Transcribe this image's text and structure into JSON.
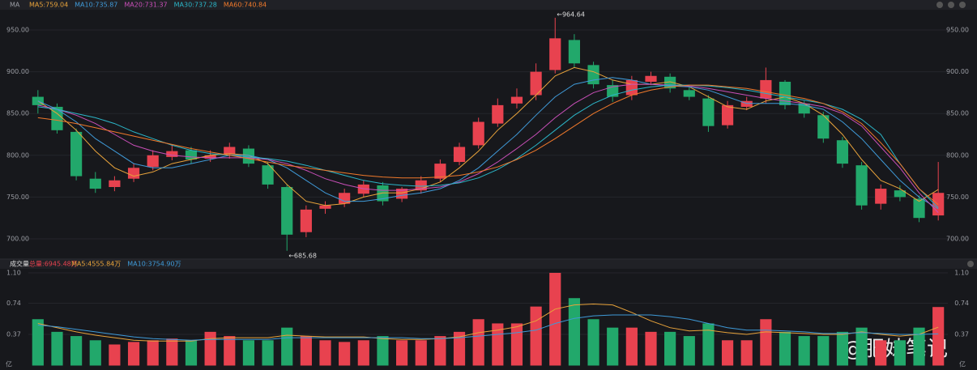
{
  "chart_data": [
    {
      "type": "candlestick",
      "indicator": "MA",
      "open": [
        870,
        858,
        828,
        772,
        762,
        772,
        786,
        798,
        806,
        796,
        801,
        808,
        788,
        762,
        708,
        736,
        742,
        754,
        764,
        748,
        758,
        772,
        792,
        812,
        838,
        862,
        872,
        902,
        938,
        908,
        884,
        872,
        888,
        894,
        878,
        868,
        836,
        858,
        868,
        888,
        862,
        848,
        818,
        788,
        742,
        758,
        748,
        728
      ],
      "high": [
        878,
        862,
        832,
        780,
        775,
        790,
        806,
        812,
        810,
        806,
        815,
        812,
        792,
        765,
        740,
        745,
        760,
        770,
        768,
        762,
        775,
        795,
        815,
        845,
        868,
        880,
        910,
        964.64,
        945,
        912,
        890,
        895,
        900,
        898,
        882,
        872,
        865,
        870,
        905,
        890,
        865,
        852,
        822,
        792,
        765,
        764,
        752,
        792
      ],
      "low": [
        850,
        826,
        770,
        755,
        757,
        768,
        782,
        794,
        790,
        792,
        796,
        786,
        760,
        685.68,
        702,
        730,
        738,
        750,
        740,
        744,
        754,
        768,
        788,
        808,
        834,
        856,
        866,
        898,
        905,
        880,
        864,
        866,
        884,
        875,
        866,
        828,
        832,
        854,
        862,
        855,
        845,
        815,
        785,
        735,
        735,
        745,
        720,
        722
      ],
      "close": [
        860,
        830,
        775,
        760,
        770,
        785,
        800,
        805,
        795,
        800,
        810,
        790,
        765,
        705,
        735,
        740,
        755,
        765,
        745,
        760,
        770,
        790,
        810,
        840,
        860,
        870,
        900,
        940,
        910,
        885,
        870,
        890,
        895,
        880,
        870,
        835,
        860,
        865,
        890,
        860,
        850,
        820,
        790,
        740,
        760,
        750,
        725,
        755
      ],
      "up_color": "#e8424f",
      "down_color": "#22a86b",
      "series": [
        {
          "name": "MA5:759.04",
          "color": "#e8a33b",
          "values": [
            865,
            850,
            830,
            805,
            785,
            775,
            780,
            790,
            795,
            800,
            802,
            800,
            790,
            765,
            745,
            740,
            742,
            750,
            755,
            755,
            760,
            768,
            785,
            805,
            830,
            850,
            872,
            895,
            905,
            900,
            890,
            885,
            885,
            888,
            882,
            870,
            858,
            855,
            865,
            870,
            862,
            848,
            825,
            795,
            770,
            760,
            745,
            759.04
          ]
        },
        {
          "name": "MA10:735.87",
          "color": "#3f9ad8",
          "values": [
            865,
            855,
            840,
            820,
            805,
            790,
            785,
            785,
            790,
            795,
            800,
            800,
            795,
            785,
            770,
            755,
            745,
            745,
            748,
            752,
            755,
            760,
            770,
            785,
            805,
            825,
            848,
            870,
            885,
            890,
            893,
            890,
            885,
            883,
            882,
            878,
            870,
            862,
            862,
            862,
            860,
            855,
            840,
            820,
            795,
            770,
            750,
            735.87
          ]
        },
        {
          "name": "MA20:731.37",
          "color": "#c94fb8",
          "values": [
            860,
            855,
            848,
            838,
            825,
            812,
            805,
            800,
            798,
            797,
            797,
            797,
            795,
            790,
            782,
            772,
            765,
            760,
            758,
            758,
            760,
            762,
            768,
            778,
            792,
            808,
            825,
            845,
            862,
            875,
            882,
            885,
            885,
            884,
            883,
            880,
            876,
            872,
            868,
            865,
            862,
            858,
            850,
            835,
            810,
            785,
            755,
            731.37
          ]
        },
        {
          "name": "MA30:737.28",
          "color": "#2bb5c7",
          "values": [
            858,
            855,
            850,
            845,
            838,
            828,
            820,
            812,
            806,
            802,
            800,
            798,
            796,
            793,
            788,
            782,
            776,
            770,
            766,
            764,
            763,
            764,
            767,
            773,
            783,
            796,
            812,
            830,
            848,
            862,
            872,
            878,
            882,
            884,
            884,
            883,
            881,
            878,
            874,
            870,
            866,
            862,
            855,
            843,
            825,
            790,
            760,
            737.28
          ]
        },
        {
          "name": "MA60:740.84",
          "color": "#f0792b",
          "values": [
            845,
            842,
            838,
            833,
            828,
            823,
            818,
            813,
            808,
            804,
            800,
            796,
            792,
            788,
            785,
            782,
            779,
            776,
            774,
            773,
            773,
            774,
            776,
            780,
            786,
            795,
            806,
            820,
            835,
            850,
            862,
            872,
            878,
            882,
            884,
            884,
            882,
            880,
            876,
            872,
            868,
            862,
            852,
            838,
            815,
            790,
            760,
            740.84
          ]
        }
      ],
      "annotations": [
        {
          "text": "←964.64",
          "index": 27
        },
        {
          "text": "←685.68",
          "index": 13
        }
      ],
      "ylim": [
        677.7,
        972.3
      ],
      "yticks": [
        {
          "value": 700,
          "label": "700.00"
        },
        {
          "value": 750,
          "label": "750.00"
        },
        {
          "value": 800,
          "label": "800.00"
        },
        {
          "value": 850,
          "label": "850.00"
        },
        {
          "value": 900,
          "label": "900.00"
        },
        {
          "value": 950,
          "label": "950.00"
        }
      ]
    },
    {
      "type": "bar",
      "title": "成交量",
      "total_label": "总量:6945.48万",
      "unit": "亿",
      "values": [
        0.55,
        0.4,
        0.35,
        0.3,
        0.25,
        0.28,
        0.3,
        0.32,
        0.3,
        0.4,
        0.35,
        0.3,
        0.3,
        0.45,
        0.35,
        0.3,
        0.28,
        0.3,
        0.35,
        0.3,
        0.3,
        0.35,
        0.4,
        0.55,
        0.5,
        0.5,
        0.7,
        1.1,
        0.8,
        0.55,
        0.45,
        0.45,
        0.4,
        0.4,
        0.35,
        0.5,
        0.3,
        0.3,
        0.55,
        0.4,
        0.35,
        0.35,
        0.4,
        0.45,
        0.3,
        0.3,
        0.45,
        0.6945
      ],
      "series": [
        {
          "name": "MA5:4555.84万",
          "color": "#e8a33b",
          "values": [
            0.5,
            0.45,
            0.4,
            0.36,
            0.33,
            0.3,
            0.29,
            0.29,
            0.29,
            0.32,
            0.33,
            0.33,
            0.33,
            0.36,
            0.35,
            0.34,
            0.34,
            0.34,
            0.32,
            0.31,
            0.31,
            0.32,
            0.34,
            0.39,
            0.42,
            0.46,
            0.53,
            0.67,
            0.72,
            0.73,
            0.72,
            0.63,
            0.53,
            0.45,
            0.41,
            0.42,
            0.39,
            0.37,
            0.4,
            0.39,
            0.38,
            0.37,
            0.37,
            0.4,
            0.37,
            0.35,
            0.37,
            0.4556
          ]
        },
        {
          "name": "MA10:3754.90万",
          "color": "#3f9ad8",
          "values": [
            0.48,
            0.46,
            0.43,
            0.4,
            0.37,
            0.34,
            0.32,
            0.31,
            0.3,
            0.31,
            0.31,
            0.31,
            0.31,
            0.33,
            0.33,
            0.33,
            0.33,
            0.33,
            0.33,
            0.33,
            0.32,
            0.32,
            0.33,
            0.35,
            0.37,
            0.39,
            0.42,
            0.5,
            0.56,
            0.59,
            0.6,
            0.6,
            0.6,
            0.58,
            0.55,
            0.5,
            0.45,
            0.42,
            0.42,
            0.41,
            0.4,
            0.38,
            0.38,
            0.39,
            0.38,
            0.37,
            0.37,
            0.3755
          ]
        }
      ],
      "ylim": [
        0,
        1.1
      ],
      "yticks": [
        0.37,
        0.74,
        {
          "value": 1.1,
          "label": "1.10"
        }
      ]
    }
  ],
  "watermark": "@肥妹笔记"
}
